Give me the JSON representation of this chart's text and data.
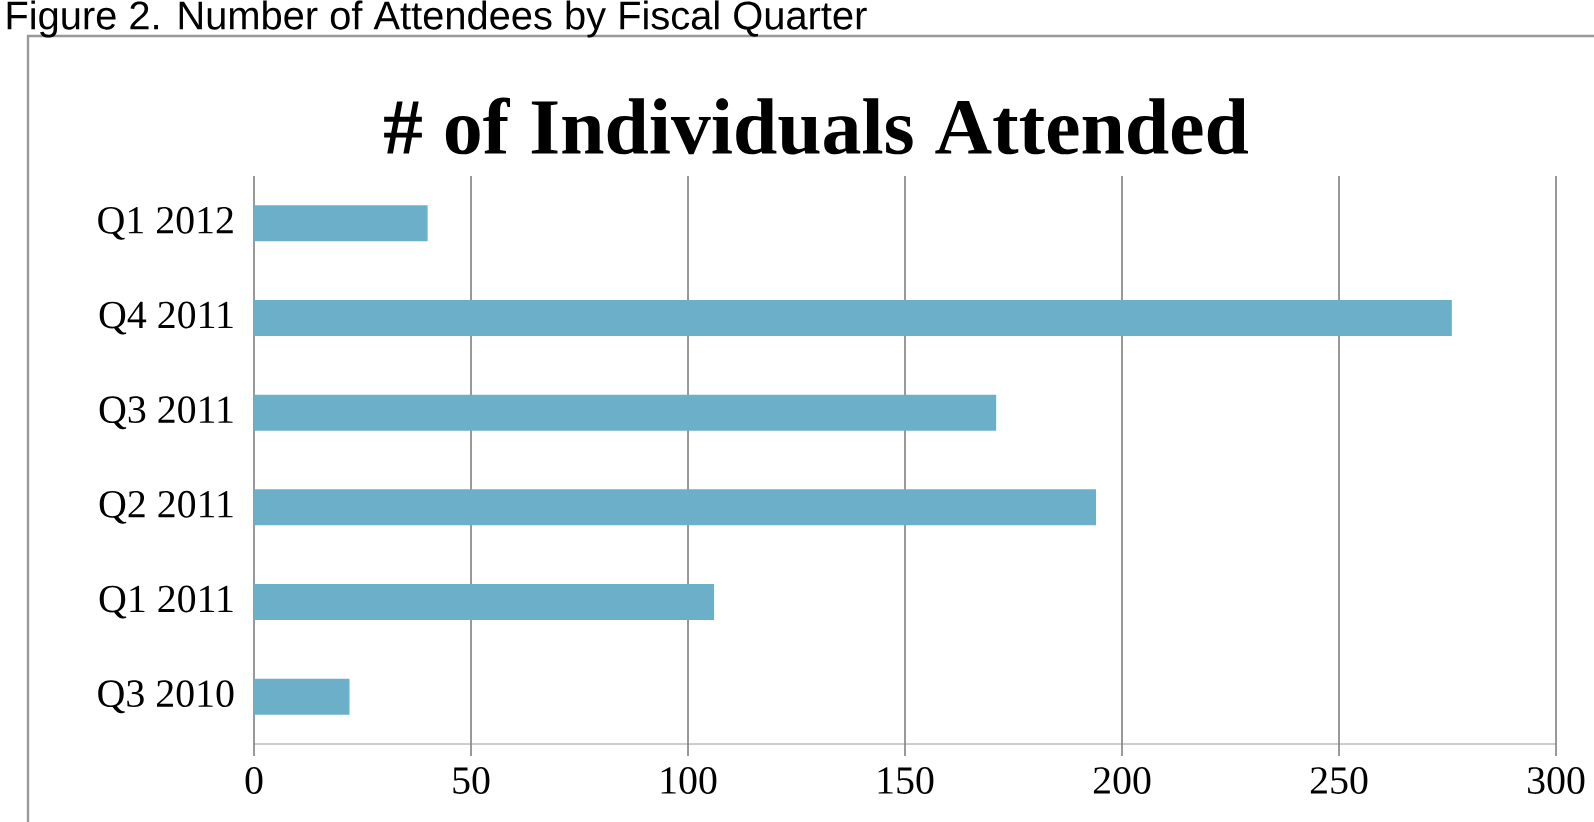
{
  "chart_data": {
    "type": "bar",
    "orientation": "horizontal",
    "title": "# of Individuals Attended",
    "annotations": [
      "Figure 2. Number of Attendees by Fiscal Quarter"
    ],
    "categories": [
      "Q1 2012",
      "Q4 2011",
      "Q3 2011",
      "Q2 2011",
      "Q1 2011",
      "Q3 2010"
    ],
    "values": [
      40,
      276,
      171,
      194,
      106,
      22
    ],
    "color": "#6bafc9",
    "xlim": [
      0,
      300
    ],
    "xticks": [
      0,
      50,
      100,
      150,
      200,
      250,
      300
    ],
    "grid": "x",
    "legend": false
  }
}
